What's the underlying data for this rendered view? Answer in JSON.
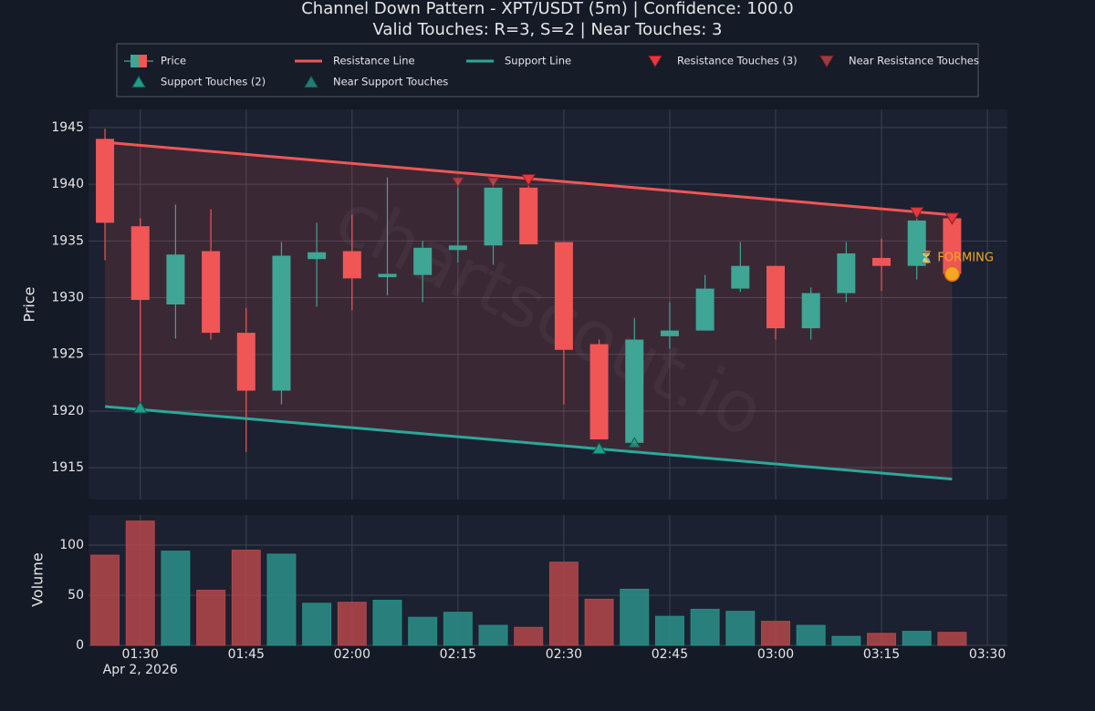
{
  "chart_data": [
    {
      "type": "candlestick",
      "title": "Channel Down Pattern - XPT/USDT (5m) | Confidence: 100.0",
      "subtitle": "Valid Touches: R=3, S=2 | Near Touches: 3",
      "y_label": "Price",
      "price_label": "Price",
      "x": [
        "2026-04-02 01:25",
        "2026-04-02 01:30",
        "2026-04-02 01:35",
        "2026-04-02 01:40",
        "2026-04-02 01:45",
        "2026-04-02 01:50",
        "2026-04-02 01:55",
        "2026-04-02 02:00",
        "2026-04-02 02:05",
        "2026-04-02 02:10",
        "2026-04-02 02:15",
        "2026-04-02 02:20",
        "2026-04-02 02:25",
        "2026-04-02 02:30",
        "2026-04-02 02:35",
        "2026-04-02 02:40",
        "2026-04-02 02:45",
        "2026-04-02 02:50",
        "2026-04-02 02:55",
        "2026-04-02 03:00",
        "2026-04-02 03:05",
        "2026-04-02 03:10",
        "2026-04-02 03:15",
        "2026-04-02 03:20",
        "2026-04-02 03:25"
      ],
      "open": [
        1944.0,
        1936.3,
        1929.4,
        1934.1,
        1926.9,
        1921.8,
        1933.4,
        1934.1,
        1931.8,
        1932.0,
        1934.2,
        1934.6,
        1939.7,
        1934.9,
        1925.9,
        1917.2,
        1926.6,
        1927.1,
        1930.8,
        1932.8,
        1927.3,
        1930.4,
        1933.5,
        1932.8,
        1937.0
      ],
      "high": [
        1944.9,
        1937.0,
        1938.2,
        1937.8,
        1929.1,
        1934.9,
        1936.6,
        1937.3,
        1940.6,
        1935.0,
        1940.2,
        1940.3,
        1940.7,
        1934.9,
        1926.3,
        1928.2,
        1929.6,
        1932.0,
        1934.9,
        1932.8,
        1930.9,
        1934.9,
        1935.2,
        1937.6,
        1937.0
      ],
      "low": [
        1933.3,
        1920.3,
        1926.4,
        1926.3,
        1916.4,
        1920.6,
        1929.2,
        1928.9,
        1930.2,
        1929.6,
        1933.1,
        1932.9,
        1934.7,
        1920.6,
        1917.5,
        1917.1,
        1925.5,
        1927.1,
        1930.5,
        1926.3,
        1926.3,
        1929.6,
        1930.6,
        1931.6,
        1932.1
      ],
      "close": [
        1936.6,
        1929.8,
        1933.8,
        1926.9,
        1921.8,
        1933.7,
        1934.0,
        1931.7,
        1932.1,
        1934.4,
        1934.6,
        1939.7,
        1934.7,
        1925.4,
        1917.5,
        1926.3,
        1927.1,
        1930.8,
        1932.8,
        1927.3,
        1930.4,
        1933.9,
        1932.8,
        1936.8,
        1932.1
      ],
      "up_color": "#3fa594",
      "down_color": "#f05656",
      "xlim": [
        "2026-04-02 01:22:40",
        "2026-04-02 03:32:50"
      ],
      "ylim": [
        1912.2,
        1946.6
      ],
      "yticks": [
        1915,
        1920,
        1925,
        1930,
        1935,
        1940,
        1945
      ],
      "grid": true,
      "resistance_line": {
        "name": "Resistance Line",
        "color": "#f05656",
        "x": [
          "2026-04-02 01:25",
          "2026-04-02 03:25"
        ],
        "values": [
          1943.7,
          1937.3
        ]
      },
      "support_line": {
        "name": "Support Line",
        "color": "#2aa89a",
        "x": [
          "2026-04-02 01:25",
          "2026-04-02 03:25"
        ],
        "values": [
          1920.4,
          1914.0
        ]
      },
      "channel_fill_color": "#f05656",
      "resistance_touches": {
        "name": "Resistance Touches (3)",
        "color": "#e8383d",
        "x": [
          "2026-04-02 02:25",
          "2026-04-02 03:20",
          "2026-04-02 03:25"
        ],
        "values": [
          1940.4,
          1937.5,
          1937.0
        ]
      },
      "near_resistance_touches": {
        "name": "Near Resistance Touches",
        "color": "#c84a50",
        "x": [
          "2026-04-02 02:15",
          "2026-04-02 02:20"
        ],
        "values": [
          1940.2,
          1940.2
        ]
      },
      "support_touches": {
        "name": "Support Touches (2)",
        "color": "#1f9e89",
        "x": [
          "2026-04-02 01:30",
          "2026-04-02 02:35"
        ],
        "values": [
          1920.3,
          1916.7
        ]
      },
      "near_support_touches": {
        "name": "Near Support Touches",
        "color": "#2a9d8f",
        "x": [
          "2026-04-02 02:40"
        ],
        "values": [
          1917.2
        ]
      },
      "forming": {
        "label": "⏳ FORMING",
        "x": "2026-04-02 03:25",
        "value": 1932.1,
        "color": "#f5a623"
      },
      "watermark": "chartscout.io"
    },
    {
      "type": "bar",
      "y_label": "Volume",
      "values": [
        90,
        124,
        94,
        55,
        95,
        91,
        42,
        43,
        45,
        28,
        33,
        20,
        18,
        83,
        46,
        56,
        29,
        36,
        34,
        24,
        20,
        9,
        12,
        14,
        13
      ],
      "up_color": "#2a8f88",
      "down_color": "#b5474b",
      "ylim": [
        0,
        130
      ],
      "yticks": [
        0,
        50,
        100
      ],
      "grid": true,
      "xticks": [
        {
          "value": "2026-04-02 01:30",
          "label": "01:30"
        },
        {
          "value": "2026-04-02 01:45",
          "label": "01:45"
        },
        {
          "value": "2026-04-02 02:00",
          "label": "02:00"
        },
        {
          "value": "2026-04-02 02:15",
          "label": "02:15"
        },
        {
          "value": "2026-04-02 02:30",
          "label": "02:30"
        },
        {
          "value": "2026-04-02 02:45",
          "label": "02:45"
        },
        {
          "value": "2026-04-02 03:00",
          "label": "03:00"
        },
        {
          "value": "2026-04-02 03:15",
          "label": "03:15"
        },
        {
          "value": "2026-04-02 03:30",
          "label": "03:30"
        }
      ],
      "x_date_label": "Apr 2, 2026"
    }
  ]
}
